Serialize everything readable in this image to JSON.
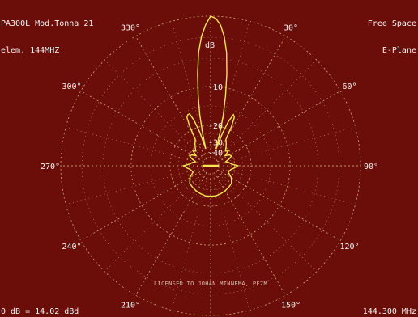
{
  "header": {
    "antenna_line": "PA300L Mod.Tonna 21",
    "elements_line": "elem. 144MHZ",
    "space_line": "Free Space",
    "plane_line": "E-Plane"
  },
  "footer": {
    "gain": "0 dB = 14.02 dBd",
    "frequency": "144.300 MHz",
    "license": "LICENSED TO JOHAN MINNEMA, PF7M"
  },
  "colors": {
    "background": "#6b0d08",
    "grid": "#c9a77a",
    "pattern": "#f5e650",
    "text": "#f2f2f2"
  },
  "chart_data": {
    "type": "polar-line",
    "unit": "dB",
    "angle_ticks": [
      {
        "deg": 330,
        "label": "330°"
      },
      {
        "deg": 30,
        "label": "30°"
      },
      {
        "deg": 300,
        "label": "300°"
      },
      {
        "deg": 60,
        "label": "60°"
      },
      {
        "deg": 270,
        "label": "270°"
      },
      {
        "deg": 90,
        "label": "90°"
      },
      {
        "deg": 240,
        "label": "240°"
      },
      {
        "deg": 120,
        "label": "120°"
      },
      {
        "deg": 210,
        "label": "210°"
      },
      {
        "deg": 150,
        "label": "150°"
      }
    ],
    "ring_ticks": [
      {
        "db": -10,
        "label": "-10"
      },
      {
        "db": -20,
        "label": "-20"
      },
      {
        "db": -30,
        "label": "-30"
      },
      {
        "db": -40,
        "label": "-40"
      }
    ],
    "ring_scale": {
      "db": [
        0,
        -10,
        -20,
        -30,
        -40
      ],
      "relative_radius": [
        1.0,
        0.53,
        0.27,
        0.16,
        0.09
      ]
    },
    "pattern": {
      "angles_deg": [
        0,
        2,
        4,
        6,
        8,
        10,
        12,
        14,
        16,
        18,
        20,
        22,
        24,
        26,
        28,
        30,
        35,
        40,
        45,
        50,
        55,
        60,
        65,
        70,
        75,
        80,
        85,
        90,
        95,
        100,
        110,
        120,
        130,
        140,
        150,
        160,
        170,
        180,
        190,
        200,
        210,
        220,
        230,
        240,
        250,
        260,
        265,
        270,
        275,
        280,
        285,
        290,
        295,
        300,
        305,
        310,
        315,
        320,
        325,
        330,
        332,
        334,
        336,
        338,
        340,
        342,
        344,
        346,
        348,
        350,
        352,
        354,
        356,
        358
      ],
      "db": [
        0,
        -0.3,
        -1.2,
        -2.8,
        -5,
        -8,
        -12,
        -17,
        -25,
        -36,
        -23,
        -18,
        -16,
        -16.5,
        -19,
        -26,
        -28,
        -30,
        -33,
        -31,
        -36,
        -32,
        -31,
        -34,
        -38,
        -35,
        -33,
        -28,
        -30,
        -33,
        -35,
        -30,
        -28,
        -27.5,
        -27,
        -26.5,
        -26,
        -26,
        -26,
        -26.5,
        -27,
        -27.5,
        -28,
        -30,
        -35,
        -33,
        -30,
        -28,
        -33,
        -35,
        -38,
        -34,
        -31,
        -32,
        -36,
        -31,
        -33,
        -30,
        -28,
        -26,
        -19,
        -16.5,
        -16,
        -16,
        -18,
        -23,
        -36,
        -25,
        -17,
        -12,
        -8,
        -5,
        -2.8,
        -1.2
      ]
    }
  }
}
